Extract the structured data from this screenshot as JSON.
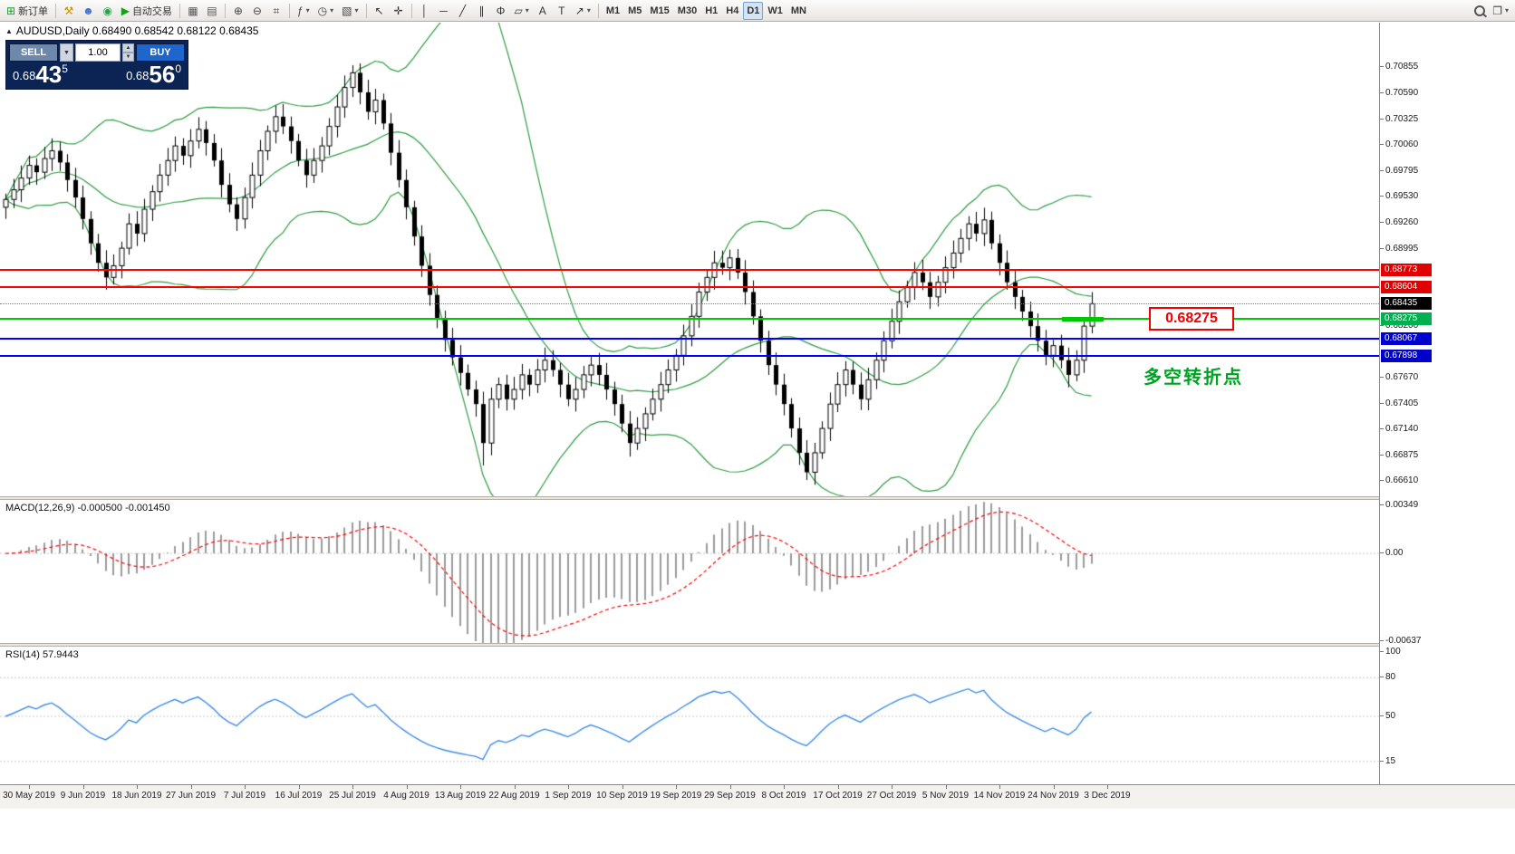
{
  "colors": {
    "bull_candle": "#ffffff",
    "bear_candle": "#000000",
    "candle_outline": "#000000",
    "bollinger": "#2d9c41",
    "red_line": "#fe0000",
    "green_line": "#00c800",
    "blue_line": "#0000ff",
    "macd_hist": "#9b9b9b",
    "macd_signal": "#ff0000",
    "rsi_line": "#3c8ce6",
    "tag_red": "#e00000",
    "tag_black": "#000000",
    "tag_green": "#00b050",
    "tag_blue": "#0000cd",
    "annotation_green": "#00a223",
    "panel_navy": "#0c2454",
    "sell_button": "#6e88ab",
    "buy_button": "#1f66cc"
  },
  "toolbar": {
    "left_groups": [
      {
        "items": [
          {
            "name": "new-order-button",
            "icon": "new-order-icon",
            "glyph": "⊞",
            "glyph_color": "#1a9c2e",
            "label": "新订单"
          }
        ]
      },
      {
        "items": [
          {
            "name": "mql-editor-button",
            "icon": "hammer-icon",
            "glyph": "⚒",
            "glyph_color": "#c79200"
          },
          {
            "name": "account-button",
            "icon": "person-icon",
            "glyph": "☻",
            "glyph_color": "#3a6fd8"
          },
          {
            "name": "community-button",
            "icon": "globe-icon",
            "glyph": "◉",
            "glyph_color": "#2e9e4f"
          },
          {
            "name": "autotrading-button",
            "icon": "play-icon",
            "glyph": "▶",
            "glyph_color": "#17a317",
            "label": "自动交易"
          }
        ]
      },
      {
        "items": [
          {
            "name": "tile-windows-button",
            "icon": "tile-windows-icon",
            "glyph": "▦",
            "glyph_color": "#555555"
          },
          {
            "name": "cascade-windows-button",
            "icon": "cascade-windows-icon",
            "glyph": "▤",
            "glyph_color": "#555555"
          }
        ]
      },
      {
        "items": [
          {
            "name": "zoom-in-button",
            "icon": "zoom-in-icon",
            "glyph": "⊕",
            "glyph_color": "#444444"
          },
          {
            "name": "zoom-out-button",
            "icon": "zoom-out-icon",
            "glyph": "⊖",
            "glyph_color": "#444444"
          },
          {
            "name": "grid-button",
            "icon": "grid-icon",
            "glyph": "⌗",
            "glyph_color": "#444444"
          }
        ]
      },
      {
        "items": [
          {
            "name": "indicators-button",
            "icon": "function-icon",
            "glyph": "ƒ",
            "glyph_color": "#444444",
            "dropdown": true
          },
          {
            "name": "periods-button",
            "icon": "clock-icon",
            "glyph": "◷",
            "glyph_color": "#444444",
            "dropdown": true
          },
          {
            "name": "templates-button",
            "icon": "template-icon",
            "glyph": "▧",
            "glyph_color": "#444444",
            "dropdown": true
          }
        ]
      },
      {
        "items": [
          {
            "name": "cursor-button",
            "icon": "cursor-icon",
            "glyph": "↖",
            "glyph_color": "#333333"
          },
          {
            "name": "crosshair-button",
            "icon": "crosshair-icon",
            "glyph": "✛",
            "glyph_color": "#333333"
          }
        ]
      },
      {
        "items": [
          {
            "name": "vertical-line-button",
            "icon": "vertical-line-icon",
            "glyph": "│",
            "glyph_color": "#333333"
          },
          {
            "name": "horizontal-line-button",
            "icon": "horizontal-line-icon",
            "glyph": "─",
            "glyph_color": "#333333"
          },
          {
            "name": "trendline-button",
            "icon": "trendline-icon",
            "glyph": "╱",
            "glyph_color": "#333333"
          },
          {
            "name": "channel-button",
            "icon": "channel-icon",
            "glyph": "∥",
            "glyph_color": "#333333"
          },
          {
            "name": "fibonacci-button",
            "icon": "fibonacci-icon",
            "glyph": "Φ",
            "glyph_color": "#333333"
          },
          {
            "name": "shapes-button",
            "icon": "shapes-icon",
            "glyph": "▱",
            "glyph_color": "#333333",
            "dropdown": true
          },
          {
            "name": "text-button",
            "icon": "text-icon",
            "glyph": "A",
            "glyph_color": "#333333"
          },
          {
            "name": "label-button",
            "icon": "label-icon",
            "glyph": "T",
            "glyph_color": "#333333"
          },
          {
            "name": "arrows-button",
            "icon": "arrow-icon",
            "glyph": "↗",
            "glyph_color": "#333333",
            "dropdown": true
          }
        ]
      },
      {
        "items": [
          {
            "name": "timeframe-m1-button",
            "label": "M1",
            "tf": true
          },
          {
            "name": "timeframe-m5-button",
            "label": "M5",
            "tf": true
          },
          {
            "name": "timeframe-m15-button",
            "label": "M15",
            "tf": true
          },
          {
            "name": "timeframe-m30-button",
            "label": "M30",
            "tf": true
          },
          {
            "name": "timeframe-h1-button",
            "label": "H1",
            "tf": true
          },
          {
            "name": "timeframe-h4-button",
            "label": "H4",
            "tf": true
          },
          {
            "name": "timeframe-d1-button",
            "label": "D1",
            "tf": true,
            "active": true
          },
          {
            "name": "timeframe-w1-button",
            "label": "W1",
            "tf": true
          },
          {
            "name": "timeframe-mn-button",
            "label": "MN",
            "tf": true
          }
        ]
      }
    ],
    "right_items": [
      {
        "name": "search-button",
        "icon": "search-icon"
      },
      {
        "name": "chart-windows-button",
        "icon": "window-icon",
        "glyph": "❐",
        "glyph_color": "#444444",
        "dropdown": true
      }
    ]
  },
  "chart": {
    "title": "AUDUSD,Daily 0.68490 0.68542 0.68122 0.68435",
    "symbol_marker": "▲",
    "annotation": "多空转折点",
    "level_label": "0.68275",
    "price_axis_ticks": [
      "0.70855",
      "0.70590",
      "0.70325",
      "0.70060",
      "0.69795",
      "0.69530",
      "0.69260",
      "0.68995",
      "0.68200",
      "0.67670",
      "0.67405",
      "0.67140",
      "0.66875",
      "0.66610"
    ],
    "price_tags": [
      {
        "text": "0.68773",
        "type": "red"
      },
      {
        "text": "0.68604",
        "type": "red"
      },
      {
        "text": "0.68435",
        "type": "black"
      },
      {
        "text": "0.68275",
        "type": "green"
      },
      {
        "text": "0.68067",
        "type": "blue"
      },
      {
        "text": "0.67898",
        "type": "blue"
      }
    ],
    "levels": [
      {
        "price": 0.68773,
        "color": "red",
        "width": 2
      },
      {
        "price": 0.68604,
        "color": "red",
        "width": 2
      },
      {
        "price": 0.68275,
        "color": "green",
        "width": 2
      },
      {
        "price": 0.68067,
        "color": "blue",
        "width": 2
      },
      {
        "price": 0.67898,
        "color": "blue",
        "width": 2
      }
    ],
    "current_price": 0.68435,
    "marker_segment_price": 0.68275,
    "time_axis": [
      "30 May 2019",
      "9 Jun 2019",
      "18 Jun 2019",
      "27 Jun 2019",
      "7 Jul 2019",
      "16 Jul 2019",
      "25 Jul 2019",
      "4 Aug 2019",
      "13 Aug 2019",
      "22 Aug 2019",
      "1 Sep 2019",
      "10 Sep 2019",
      "19 Sep 2019",
      "29 Sep 2019",
      "8 Oct 2019",
      "17 Oct 2019",
      "27 Oct 2019",
      "5 Nov 2019",
      "14 Nov 2019",
      "24 Nov 2019",
      "3 Dec 2019"
    ]
  },
  "trade_panel": {
    "sell_label": "SELL",
    "buy_label": "BUY",
    "volume": "1.00",
    "spin_up": "▲",
    "spin_down": "▼",
    "sell_price": {
      "prefix": "0.68",
      "big": "43",
      "sup": "5"
    },
    "buy_price": {
      "prefix": "0.68",
      "big": "56",
      "sup": "0"
    }
  },
  "indicators": {
    "macd_label": "MACD(12,26,9) -0.000500 -0.001450",
    "macd_axis": [
      "0.00349",
      "0.00",
      "-0.00637"
    ],
    "rsi_label": "RSI(14) 57.9443",
    "rsi_axis": [
      "100",
      "80",
      "50",
      "15"
    ]
  },
  "chart_data": {
    "type": "candlestick",
    "symbol": "AUDUSD",
    "timeframe": "Daily",
    "last_ohlc": [
      0.6849,
      0.68542,
      0.68122,
      0.68435
    ],
    "y_axis_range": [
      0.665,
      0.7125
    ],
    "macd_range": [
      -0.00637,
      0.00349
    ],
    "rsi_range": [
      0,
      100
    ],
    "closes": [
      0.695,
      0.696,
      0.6972,
      0.6985,
      0.6978,
      0.6992,
      0.7,
      0.6988,
      0.697,
      0.6952,
      0.693,
      0.6905,
      0.6885,
      0.687,
      0.6882,
      0.69,
      0.6925,
      0.6915,
      0.694,
      0.6958,
      0.6975,
      0.699,
      0.7005,
      0.6995,
      0.701,
      0.7022,
      0.7008,
      0.699,
      0.6965,
      0.6945,
      0.693,
      0.6952,
      0.6975,
      0.7,
      0.702,
      0.7035,
      0.7025,
      0.701,
      0.699,
      0.6975,
      0.699,
      0.7005,
      0.7025,
      0.7045,
      0.7065,
      0.708,
      0.706,
      0.704,
      0.7052,
      0.7028,
      0.6998,
      0.697,
      0.6942,
      0.6912,
      0.6882,
      0.6852,
      0.6828,
      0.6806,
      0.6788,
      0.6772,
      0.6755,
      0.674,
      0.67,
      0.6745,
      0.676,
      0.6745,
      0.6755,
      0.677,
      0.676,
      0.6775,
      0.6785,
      0.6775,
      0.676,
      0.6745,
      0.6755,
      0.677,
      0.678,
      0.677,
      0.6755,
      0.674,
      0.672,
      0.67,
      0.6715,
      0.673,
      0.6745,
      0.676,
      0.6775,
      0.679,
      0.681,
      0.683,
      0.6855,
      0.687,
      0.6885,
      0.688,
      0.689,
      0.6875,
      0.6855,
      0.683,
      0.6805,
      0.678,
      0.676,
      0.674,
      0.6715,
      0.669,
      0.667,
      0.669,
      0.6715,
      0.674,
      0.676,
      0.6775,
      0.676,
      0.6745,
      0.6765,
      0.6785,
      0.6805,
      0.6825,
      0.6845,
      0.686,
      0.6875,
      0.6865,
      0.685,
      0.6865,
      0.688,
      0.6895,
      0.691,
      0.6925,
      0.6915,
      0.6929,
      0.6905,
      0.6885,
      0.6865,
      0.685,
      0.6835,
      0.682,
      0.6805,
      0.679,
      0.68,
      0.6785,
      0.677,
      0.6785,
      0.682,
      0.6843
    ],
    "low_wick_overrides": {
      "62": 0.6677,
      "81": 0.6686,
      "104": 0.6662
    },
    "indicators": {
      "bollinger": {
        "period": 20,
        "deviation": 2
      },
      "macd": {
        "fast": 12,
        "slow": 26,
        "signal": 9,
        "values": [
          -0.0005,
          -0.00145
        ]
      },
      "rsi": {
        "period": 14,
        "value": 57.9443
      }
    }
  }
}
